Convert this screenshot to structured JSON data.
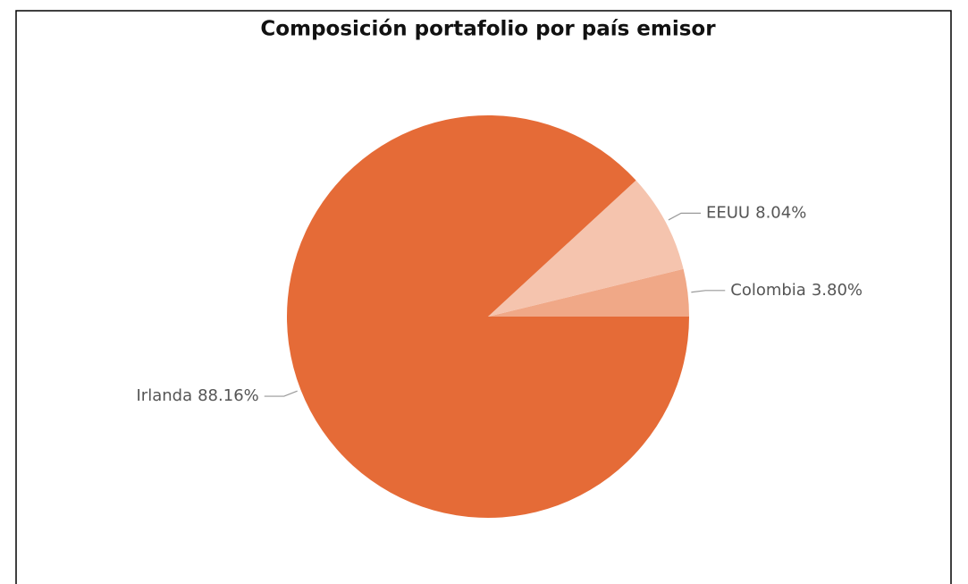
{
  "chart_data": {
    "type": "pie",
    "title": "Composición portafolio por país emisor",
    "categories": [
      "Colombia",
      "EEUU",
      "Irlanda"
    ],
    "values": [
      3.8,
      8.04,
      88.16
    ],
    "value_labels": [
      "3.80%",
      "8.04%",
      "88.16%"
    ],
    "colors": [
      "#F0A887",
      "#F5C4AE",
      "#E56B37"
    ]
  }
}
